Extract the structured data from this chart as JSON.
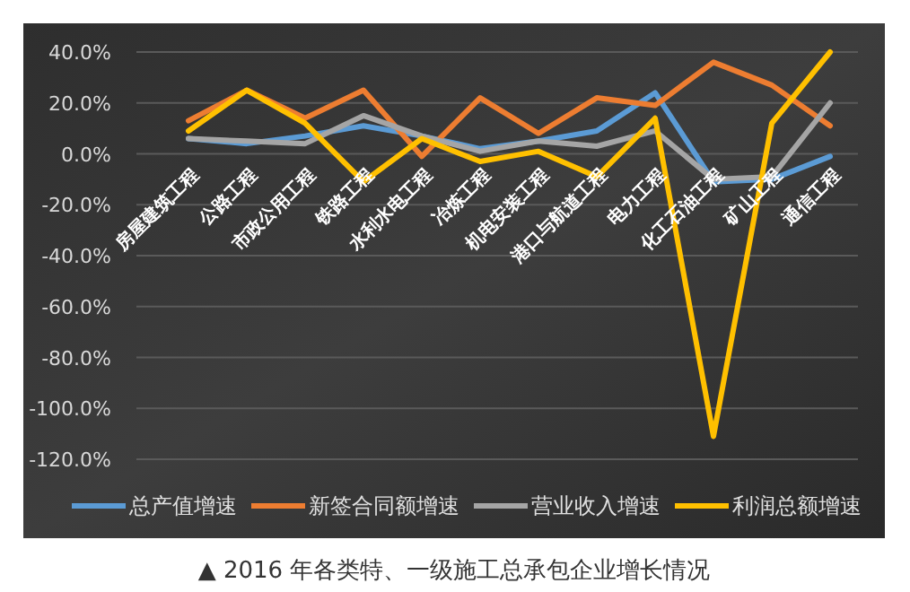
{
  "chart_data": {
    "type": "line",
    "categories": [
      "房屋建筑工程",
      "公路工程",
      "市政公用工程",
      "铁路工程",
      "水利水电工程",
      "冶炼工程",
      "机电安装工程",
      "港口与航道工程",
      "电力工程",
      "化工石油工程",
      "矿山工程",
      "通信工程"
    ],
    "series": [
      {
        "name": "总产值增速",
        "color": "#5b9bd5",
        "values": [
          6,
          4,
          7,
          11,
          7,
          2,
          5,
          9,
          24,
          -11,
          -10,
          -1
        ]
      },
      {
        "name": "新签合同额增速",
        "color": "#ed7d31",
        "values": [
          13,
          25,
          14,
          25,
          -1,
          22,
          8,
          22,
          19,
          36,
          27,
          11
        ]
      },
      {
        "name": "营业收入增速",
        "color": "#a5a5a5",
        "values": [
          6,
          5,
          4,
          15,
          7,
          1,
          5,
          3,
          9,
          -10,
          -9,
          20
        ]
      },
      {
        "name": "利润总额增速",
        "color": "#ffc000",
        "values": [
          9,
          25,
          12,
          -11,
          6,
          -3,
          1,
          -9,
          14,
          -111,
          12,
          40
        ]
      }
    ],
    "ylim": [
      -120,
      40
    ],
    "yticks": [
      {
        "value": 40,
        "label": "40.0%"
      },
      {
        "value": 20,
        "label": "20.0%"
      },
      {
        "value": 0,
        "label": "0.0%"
      },
      {
        "value": -20,
        "label": "-20.0%"
      },
      {
        "value": -40,
        "label": "-40.0%"
      },
      {
        "value": -60,
        "label": "-60.0%"
      },
      {
        "value": -80,
        "label": "-80.0%"
      },
      {
        "value": -100,
        "label": "-100.0%"
      },
      {
        "value": -120,
        "label": "-120.0%"
      }
    ],
    "grid": "y",
    "legend": "bottom",
    "marker": "none",
    "line_style": "solid",
    "annotations": [
      "▲ 2016 年各类特、一级施工总承包企业增长情况"
    ]
  }
}
